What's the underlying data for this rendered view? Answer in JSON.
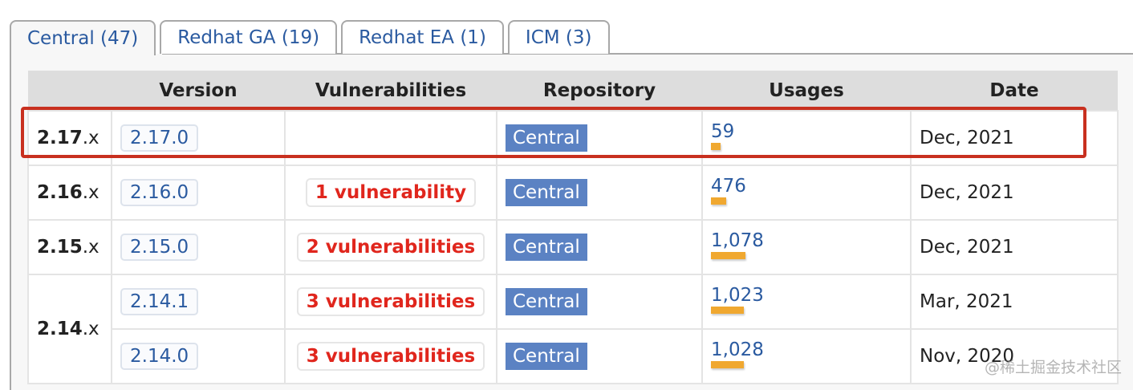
{
  "tabs": [
    {
      "label": "Central (47)",
      "active": true
    },
    {
      "label": "Redhat GA (19)"
    },
    {
      "label": "Redhat EA (1)"
    },
    {
      "label": "ICM (3)"
    }
  ],
  "table": {
    "headers": [
      "",
      "Version",
      "Vulnerabilities",
      "Repository",
      "Usages",
      "Date"
    ],
    "groups": [
      {
        "major": "2.17",
        "suffix": ".x",
        "rows": [
          {
            "version": "2.17.0",
            "vulnerabilities": "",
            "repository": "Central",
            "usages": "59",
            "usage_value": 59,
            "date": "Dec, 2021"
          }
        ]
      },
      {
        "major": "2.16",
        "suffix": ".x",
        "rows": [
          {
            "version": "2.16.0",
            "vulnerabilities": "1 vulnerability",
            "repository": "Central",
            "usages": "476",
            "usage_value": 476,
            "date": "Dec, 2021"
          }
        ]
      },
      {
        "major": "2.15",
        "suffix": ".x",
        "rows": [
          {
            "version": "2.15.0",
            "vulnerabilities": "2 vulnerabilities",
            "repository": "Central",
            "usages": "1,078",
            "usage_value": 1078,
            "date": "Dec, 2021"
          }
        ]
      },
      {
        "major": "2.14",
        "suffix": ".x",
        "rows": [
          {
            "version": "2.14.1",
            "vulnerabilities": "3 vulnerabilities",
            "repository": "Central",
            "usages": "1,023",
            "usage_value": 1023,
            "date": "Mar, 2021"
          },
          {
            "version": "2.14.0",
            "vulnerabilities": "3 vulnerabilities",
            "repository": "Central",
            "usages": "1,028",
            "usage_value": 1028,
            "date": "Nov, 2020"
          }
        ]
      }
    ]
  },
  "highlight_color": "#c8301f",
  "watermark": "@稀土掘金技术社区"
}
